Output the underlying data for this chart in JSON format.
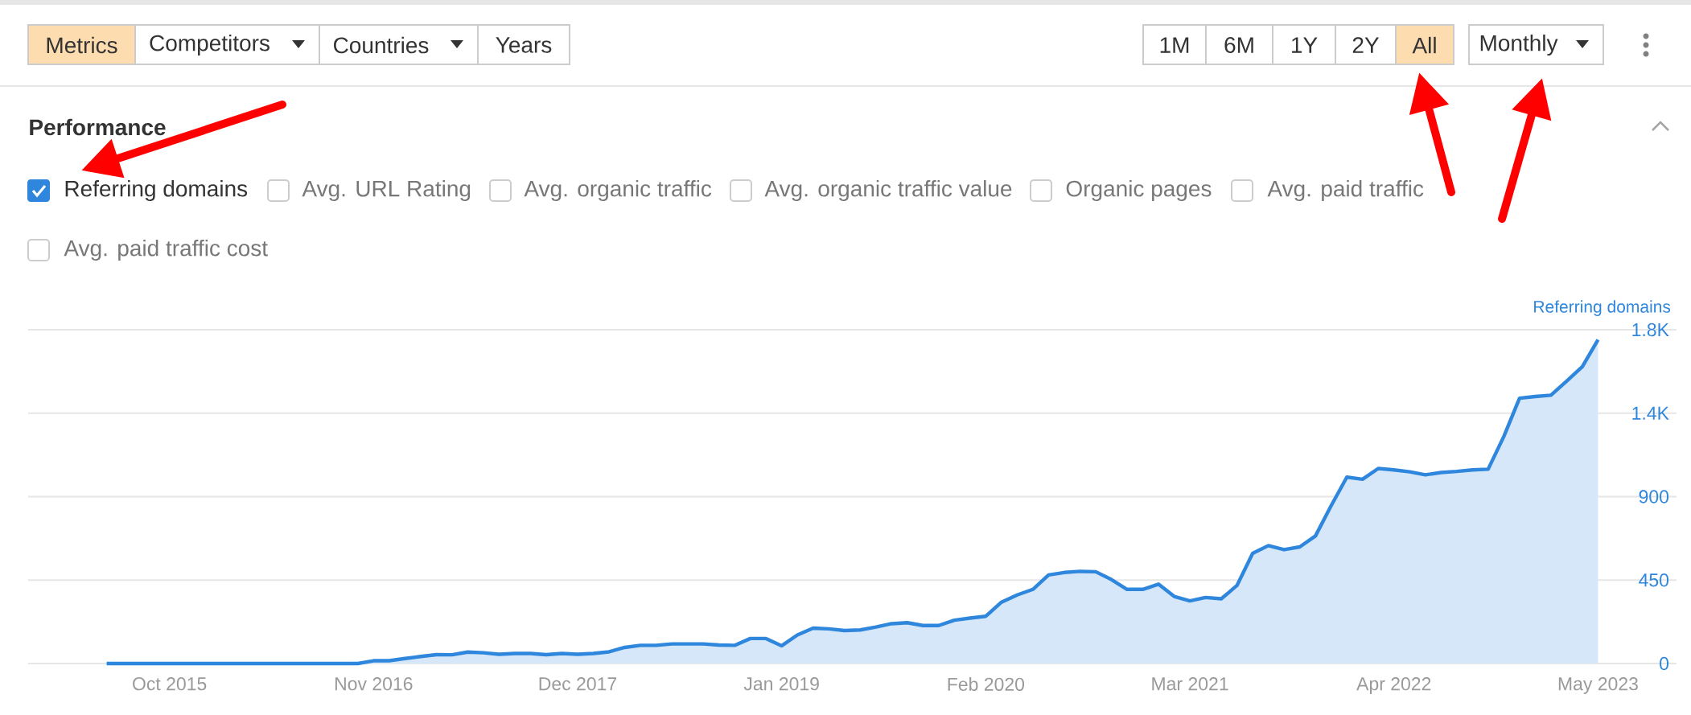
{
  "chart_data": {
    "type": "area",
    "title": "Performance",
    "ylabel": "Referring domains",
    "annotations": [
      "Metrics",
      "Competitors",
      "Countries",
      "Years",
      "1M",
      "6M",
      "1Y",
      "2Y",
      "All",
      "Monthly",
      "Referring domains",
      "Avg. URL Rating",
      "Avg. organic traffic",
      "Avg. organic traffic value",
      "Organic pages",
      "Avg. paid traffic",
      "Avg. paid traffic cost"
    ],
    "x": [
      "2015-06",
      "2016-10",
      "2016-11",
      "2016-12",
      "2017-01",
      "2017-02",
      "2017-03",
      "2017-04",
      "2017-05",
      "2017-06",
      "2017-07",
      "2017-08",
      "2017-09",
      "2017-10",
      "2017-11",
      "2017-12",
      "2018-01",
      "2018-02",
      "2018-03",
      "2018-04",
      "2018-05",
      "2018-06",
      "2018-07",
      "2018-08",
      "2018-09",
      "2018-10",
      "2018-11",
      "2018-12",
      "2019-01",
      "2019-02",
      "2019-03",
      "2019-04",
      "2019-05",
      "2019-06",
      "2019-07",
      "2019-08",
      "2019-09",
      "2019-10",
      "2019-11",
      "2019-12",
      "2020-01",
      "2020-02",
      "2020-03",
      "2020-04",
      "2020-05",
      "2020-06",
      "2020-07",
      "2020-08",
      "2020-09",
      "2020-10",
      "2020-11",
      "2020-12",
      "2021-01",
      "2021-02",
      "2021-03",
      "2021-04",
      "2021-05",
      "2021-06",
      "2021-07",
      "2021-08",
      "2021-09",
      "2021-10",
      "2021-11",
      "2021-12",
      "2022-01",
      "2022-02",
      "2022-03",
      "2022-04",
      "2022-05",
      "2022-06",
      "2022-07",
      "2022-08",
      "2022-09",
      "2022-10",
      "2022-11",
      "2022-12",
      "2023-01",
      "2023-02",
      "2023-03",
      "2023-04",
      "2023-05"
    ],
    "series": [
      {
        "color": "#2f86dd",
        "values": [
          0,
          0,
          15,
          15,
          27,
          38,
          48,
          47,
          62,
          58,
          50,
          54,
          54,
          48,
          54,
          50,
          54,
          63,
          87,
          98,
          98,
          106,
          106,
          106,
          100,
          98,
          135,
          135,
          96,
          154,
          191,
          187,
          178,
          181,
          197,
          215,
          220,
          205,
          205,
          234,
          245,
          255,
          331,
          370,
          400,
          478,
          491,
          497,
          495,
          453,
          400,
          400,
          428,
          362,
          338,
          356,
          349,
          421,
          594,
          636,
          614,
          629,
          688,
          851,
          1005,
          994,
          1052,
          1044,
          1034,
          1018,
          1030,
          1036,
          1044,
          1048,
          1225,
          1431,
          1440,
          1447,
          1523,
          1601,
          1746
        ]
      }
    ],
    "xlim": [
      "2015-01",
      "2023-10"
    ],
    "xticks": [
      {
        "value": "2015-10",
        "label": "Oct 2015"
      },
      {
        "value": "2016-11",
        "label": "Nov 2016"
      },
      {
        "value": "2017-12",
        "label": "Dec 2017"
      },
      {
        "value": "2019-01",
        "label": "Jan 2019"
      },
      {
        "value": "2020-02",
        "label": "Feb 2020"
      },
      {
        "value": "2021-03",
        "label": "Mar 2021"
      },
      {
        "value": "2022-04",
        "label": "Apr 2022"
      },
      {
        "value": "2023-05",
        "label": "May 2023"
      }
    ],
    "ylim": [
      0,
      1800
    ],
    "yticks": [
      0,
      450,
      900,
      {
        "value": 1350,
        "label": "1.4K"
      },
      {
        "value": 1800,
        "label": "1.8K"
      }
    ],
    "grid": "y"
  }
}
